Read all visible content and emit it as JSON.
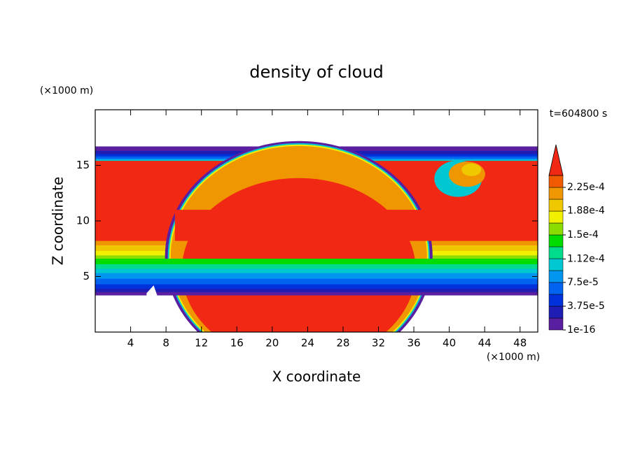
{
  "chart_data": {
    "type": "contour",
    "title": "density of cloud",
    "x_label": "X coordinate",
    "y_label": "Z coordinate",
    "x_unit": "(×1000 m)",
    "y_unit": "(×1000 m)",
    "time_label": "t=604800 s",
    "xlim": [
      0,
      50
    ],
    "ylim": [
      0,
      20
    ],
    "xticks": [
      4,
      8,
      12,
      16,
      20,
      24,
      28,
      32,
      36,
      40,
      44,
      48
    ],
    "yticks": [
      5,
      10,
      15
    ],
    "colorbar": {
      "levels": [
        1e-16,
        1.875e-05,
        3.75e-05,
        5.625e-05,
        7.5e-05,
        9.375e-05,
        0.0001125,
        0.00013125,
        0.00015,
        0.00016875,
        0.0001875,
        0.00020625,
        0.000225,
        0.00024375
      ],
      "colors": [
        "#5a1ea0",
        "#1e1eb4",
        "#0032dc",
        "#0064f0",
        "#0096f0",
        "#00c8d2",
        "#00dc8c",
        "#00dc00",
        "#8cdc00",
        "#f0f000",
        "#f0c800",
        "#f09600",
        "#f05a00",
        "#f02814",
        "#f0a0a0"
      ],
      "ticks": [
        {
          "value": 1e-16,
          "label": "1e-16"
        },
        {
          "value": 3.75e-05,
          "label": "3.75e-5"
        },
        {
          "value": 7.5e-05,
          "label": "7.5e-5"
        },
        {
          "value": 0.000112,
          "label": "1.12e-4"
        },
        {
          "value": 0.00015,
          "label": "1.5e-4"
        },
        {
          "value": 0.000188,
          "label": "1.88e-4"
        },
        {
          "value": 0.000225,
          "label": "2.25e-4"
        }
      ]
    }
  }
}
